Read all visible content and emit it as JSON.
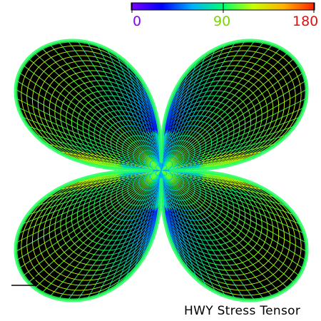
{
  "colorbar": {
    "min_label": "0",
    "mid_label": "90",
    "max_label": "180",
    "min_value": 0,
    "max_value": 180,
    "colors": [
      "#7a00ff",
      "#0000ff",
      "#00b0ff",
      "#00ff70",
      "#c8ff00",
      "#ffb000",
      "#ff2000"
    ]
  },
  "caption": "HWY Stress Tensor",
  "surface": {
    "shape": "four-lobed stress tensor glyph",
    "lobes": 4,
    "mesh": "wireframe",
    "background": "#000000",
    "label_colors": {
      "min": "#8000ff",
      "mid": "#7ad400",
      "max": "#e01010"
    }
  }
}
